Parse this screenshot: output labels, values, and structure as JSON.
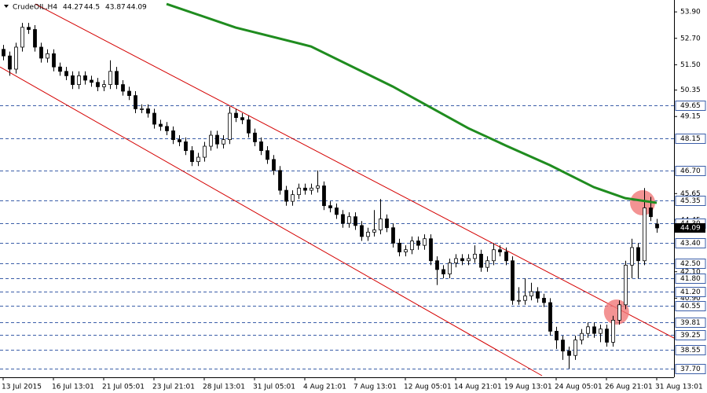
{
  "chart_data": {
    "type": "candlestick",
    "symbol": "CrudeOIL,H4",
    "header_ohlc": [
      44.27,
      44.5,
      43.87,
      44.09
    ],
    "up_color": "#ffffff",
    "down_color": "#000000",
    "categories": [
      "13 Jul 2015",
      null,
      null,
      null,
      null,
      null,
      null,
      null,
      "16 Jul 13:01",
      null,
      null,
      null,
      null,
      null,
      null,
      null,
      "21 Jul 05:01",
      null,
      null,
      null,
      null,
      null,
      null,
      null,
      "23 Jul 21:01",
      null,
      null,
      null,
      null,
      null,
      null,
      null,
      "28 Jul 13:01",
      null,
      null,
      null,
      null,
      null,
      null,
      null,
      "31 Jul 05:01",
      null,
      null,
      null,
      null,
      null,
      null,
      null,
      "4 Aug 21:01",
      null,
      null,
      null,
      null,
      null,
      null,
      null,
      "7 Aug 13:01",
      null,
      null,
      null,
      null,
      null,
      null,
      null,
      "12 Aug 05:01",
      null,
      null,
      null,
      null,
      null,
      null,
      null,
      "14 Aug 21:01",
      null,
      null,
      null,
      null,
      null,
      null,
      null,
      "19 Aug 13:01",
      null,
      null,
      null,
      null,
      null,
      null,
      null,
      "24 Aug 05:01",
      null,
      null,
      null,
      null,
      null,
      null,
      null,
      "26 Aug 21:01",
      null,
      null,
      null,
      null,
      null,
      null,
      null,
      "31 Aug 13:01"
    ],
    "open": [
      52.2,
      51.9,
      51.3,
      52.3,
      53.2,
      53.1,
      52.3,
      51.8,
      52.0,
      51.4,
      51.2,
      51.0,
      50.6,
      51.0,
      50.8,
      50.7,
      50.5,
      50.6,
      51.2,
      50.6,
      50.3,
      50.1,
      49.5,
      49.5,
      49.3,
      48.8,
      48.7,
      48.5,
      48.1,
      48.0,
      47.6,
      47.1,
      47.3,
      47.8,
      48.3,
      47.9,
      48.1,
      49.3,
      49.1,
      49.0,
      48.4,
      48.0,
      47.6,
      47.2,
      46.7,
      45.8,
      45.3,
      45.6,
      45.9,
      45.8,
      45.9,
      46.0,
      45.1,
      45.0,
      44.7,
      44.3,
      44.6,
      44.2,
      43.7,
      43.9,
      44.0,
      44.5,
      44.1,
      43.4,
      43.0,
      43.1,
      43.5,
      43.3,
      43.6,
      42.6,
      42.2,
      42.0,
      42.5,
      42.7,
      42.6,
      42.7,
      42.9,
      42.3,
      42.6,
      43.1,
      43.0,
      42.6,
      40.8,
      40.8,
      41.0,
      41.2,
      40.9,
      40.7,
      39.4,
      39.0,
      38.5,
      38.3,
      39.0,
      39.3,
      39.6,
      39.3,
      39.5,
      38.9,
      39.9,
      40.6,
      42.4,
      43.2,
      42.6,
      45.0,
      44.27
    ],
    "high": [
      52.4,
      52.1,
      52.5,
      53.4,
      53.4,
      53.3,
      52.5,
      52.2,
      52.2,
      51.6,
      51.4,
      51.2,
      51.2,
      51.2,
      51.0,
      50.9,
      50.8,
      51.7,
      51.4,
      50.8,
      50.5,
      50.3,
      49.7,
      49.7,
      49.5,
      49.0,
      48.9,
      48.7,
      48.3,
      48.2,
      47.8,
      47.5,
      48.0,
      48.5,
      48.5,
      48.3,
      49.6,
      49.5,
      49.3,
      49.2,
      48.6,
      48.2,
      47.8,
      47.4,
      46.9,
      46.0,
      45.8,
      46.1,
      46.1,
      46.1,
      46.7,
      46.2,
      45.3,
      45.2,
      44.9,
      44.8,
      44.8,
      44.4,
      44.1,
      44.9,
      45.4,
      44.7,
      44.3,
      43.6,
      43.3,
      43.7,
      43.7,
      43.8,
      43.8,
      42.8,
      42.4,
      42.7,
      42.9,
      42.9,
      42.9,
      43.3,
      43.1,
      42.8,
      43.4,
      43.3,
      43.2,
      42.8,
      41.4,
      41.8,
      41.6,
      41.4,
      41.1,
      40.9,
      39.6,
      39.2,
      38.7,
      39.2,
      39.5,
      39.8,
      39.8,
      39.7,
      39.7,
      40.1,
      40.8,
      42.6,
      43.6,
      43.4,
      45.9,
      45.5,
      44.5
    ],
    "low": [
      51.7,
      51.0,
      51.1,
      52.1,
      52.9,
      52.1,
      51.6,
      51.6,
      51.2,
      51.0,
      50.8,
      50.4,
      50.4,
      50.6,
      50.5,
      50.3,
      50.3,
      50.4,
      50.4,
      50.1,
      49.9,
      49.3,
      49.3,
      49.1,
      48.6,
      48.5,
      48.3,
      47.9,
      47.8,
      47.4,
      46.9,
      46.9,
      47.1,
      47.6,
      47.7,
      47.7,
      47.9,
      48.9,
      48.8,
      48.2,
      47.8,
      47.4,
      47.0,
      46.5,
      45.6,
      45.1,
      45.1,
      45.4,
      45.6,
      45.6,
      45.7,
      44.9,
      44.8,
      44.5,
      44.1,
      44.1,
      44.0,
      43.5,
      43.5,
      43.7,
      43.8,
      43.9,
      43.2,
      42.8,
      42.8,
      42.9,
      43.1,
      43.1,
      42.4,
      41.5,
      41.8,
      41.8,
      42.3,
      42.4,
      42.4,
      42.5,
      42.1,
      42.1,
      42.4,
      42.8,
      42.4,
      40.6,
      40.6,
      40.6,
      40.8,
      40.7,
      40.5,
      39.2,
      38.6,
      38.1,
      37.7,
      38.1,
      38.8,
      39.1,
      39.1,
      38.9,
      38.7,
      38.7,
      39.7,
      40.4,
      41.8,
      41.8,
      42.4,
      44.4,
      43.87
    ],
    "close": [
      51.9,
      51.3,
      52.3,
      53.2,
      53.1,
      52.3,
      51.8,
      52.0,
      51.4,
      51.2,
      51.0,
      50.6,
      51.0,
      50.8,
      50.7,
      50.5,
      50.6,
      51.2,
      50.6,
      50.3,
      50.1,
      49.5,
      49.5,
      49.3,
      48.8,
      48.7,
      48.5,
      48.1,
      48.0,
      47.6,
      47.1,
      47.3,
      47.8,
      48.3,
      47.9,
      48.1,
      49.3,
      49.1,
      49.0,
      48.4,
      48.0,
      47.6,
      47.2,
      46.7,
      45.8,
      45.3,
      45.6,
      45.9,
      45.8,
      45.9,
      46.0,
      45.1,
      45.0,
      44.7,
      44.3,
      44.6,
      44.2,
      43.7,
      43.9,
      44.0,
      44.5,
      44.1,
      43.4,
      43.0,
      43.1,
      43.5,
      43.3,
      43.6,
      42.6,
      42.2,
      42.0,
      42.5,
      42.7,
      42.6,
      42.7,
      42.9,
      42.3,
      42.6,
      43.1,
      43.0,
      42.6,
      40.8,
      40.8,
      41.0,
      41.2,
      40.9,
      40.7,
      39.4,
      39.0,
      38.5,
      38.3,
      39.0,
      39.3,
      39.6,
      39.3,
      39.5,
      38.9,
      39.9,
      40.6,
      42.4,
      43.2,
      42.6,
      45.0,
      44.6,
      44.09
    ],
    "moving_average": {
      "color": "#1f8c1f",
      "x": [
        26,
        37,
        49,
        62,
        74,
        80,
        87,
        94,
        99,
        104
      ],
      "values": [
        54.26,
        53.19,
        52.33,
        50.51,
        48.62,
        47.83,
        46.94,
        45.94,
        45.44,
        45.23
      ]
    },
    "trendlines": [
      {
        "color": "#d40000",
        "x": [
          5.1,
          106.75
        ],
        "values": [
          54.26,
          39.09
        ]
      },
      {
        "color": "#d40000",
        "x": [
          -0.5,
          85.75
        ],
        "values": [
          51.4,
          37.38
        ]
      }
    ],
    "highlights": {
      "color": "#f07878",
      "x": [
        97.6,
        101.75
      ],
      "values": [
        40.27,
        45.23
      ]
    },
    "ylim": [
      37.38,
      54.44
    ],
    "yticks": [
      {
        "value": 53.9,
        "label": "53.90"
      },
      {
        "value": 52.7,
        "label": "52.70"
      },
      {
        "value": 51.5,
        "label": "51.50"
      },
      {
        "value": 50.35,
        "label": "50.35"
      },
      {
        "value": 49.15,
        "label": "49.15"
      },
      {
        "value": 45.65,
        "label": "45.65"
      },
      {
        "value": 44.45,
        "label": "44.45"
      },
      {
        "value": 42.1,
        "label": "42.10"
      },
      {
        "value": 40.9,
        "label": "40.90"
      }
    ],
    "level_color": "#3b5ea8",
    "levels": [
      {
        "value": 49.65,
        "label": "49.65"
      },
      {
        "value": 48.15,
        "label": "48.15"
      },
      {
        "value": 46.7,
        "label": "46.70"
      },
      {
        "value": 45.35,
        "label": "45.35"
      },
      {
        "value": 44.3,
        "label": "44.30"
      },
      {
        "value": 43.4,
        "label": "43.40"
      },
      {
        "value": 42.5,
        "label": "42.50"
      },
      {
        "value": 41.8,
        "label": "41.80"
      },
      {
        "value": 41.2,
        "label": "41.20"
      },
      {
        "value": 40.55,
        "label": "40.55"
      },
      {
        "value": 39.81,
        "label": "39.81"
      },
      {
        "value": 39.25,
        "label": "39.25"
      },
      {
        "value": 38.55,
        "label": "38.55"
      },
      {
        "value": 37.7,
        "label": "37.70"
      }
    ]
  }
}
